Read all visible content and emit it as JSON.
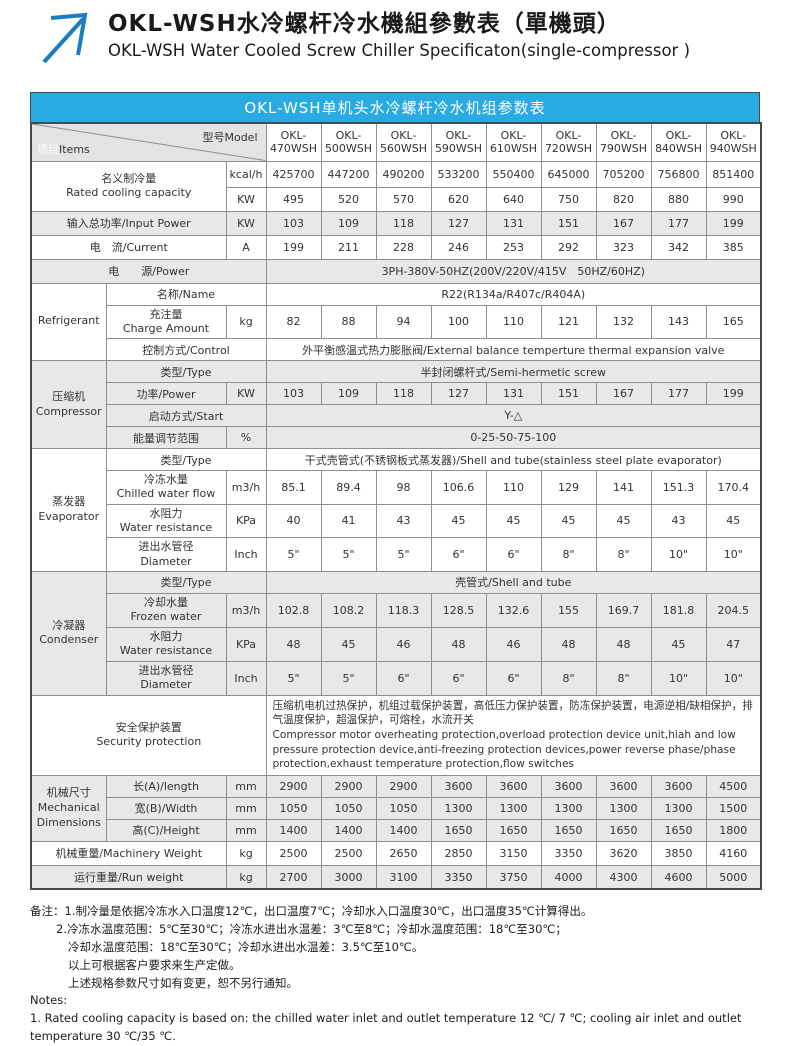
{
  "page_title": {
    "zh": "OKL-WSH水冷螺杆冷水機組參數表（單機頭）",
    "en": "OKL-WSH Water Cooled Screw Chiller Specificaton(single-compressor )"
  },
  "banner": {
    "text": "OKL-WSH单机头水冷螺杆冷水机组参数表"
  },
  "colors": {
    "banner_blue": "#29abe2",
    "arrow_blue": "#1a7dc2",
    "row_gray": "#e8e8e8",
    "border_gray": "#8f8f8f"
  },
  "header": {
    "items_zh": "项目",
    "items_en": "Items",
    "model_label": "型号Model",
    "models": [
      "OKL-470WSH",
      "OKL-500WSH",
      "OKL-560WSH",
      "OKL-590WSH",
      "OKL-610WSH",
      "OKL-720WSH",
      "OKL-790WSH",
      "OKL-840WSH",
      "OKL-940WSH"
    ]
  },
  "table": {
    "rated": {
      "label_zh": "名义制冷量",
      "label_en": "Rated cooling capacity",
      "kcal_unit": "kcal/h",
      "kcal_values": [
        425700,
        447200,
        490200,
        533200,
        550400,
        645000,
        705200,
        756800,
        851400
      ],
      "kw_unit": "KW",
      "kw_values": [
        495,
        520,
        570,
        620,
        640,
        750,
        820,
        880,
        990
      ]
    },
    "input_power": {
      "label": "输入总功率/Input Power",
      "unit": "KW",
      "values": [
        103,
        109,
        118,
        127,
        131,
        151,
        167,
        177,
        199
      ]
    },
    "current": {
      "label": "电　流/Current",
      "unit": "A",
      "values": [
        199,
        211,
        228,
        246,
        253,
        292,
        323,
        342,
        385
      ]
    },
    "power_supply": {
      "label": "电　　源/Power",
      "value": "3PH-380V-50HZ(200V/220V/415V　50HZ/60HZ)"
    },
    "refrigerant": {
      "group": "Refrigerant",
      "name_label": "名称/Name",
      "name_value": "R22(R134a/R407c/R404A)",
      "charge_label_zh": "充注量",
      "charge_label_en": "Charge Amount",
      "charge_unit": "kg",
      "charge_values": [
        82,
        88,
        94,
        100,
        110,
        121,
        132,
        143,
        165
      ],
      "control_label": "控制方式/Control",
      "control_value": "外平衡感温式热力膨胀阀/External balance temperture thermal expansion valve"
    },
    "compressor": {
      "group_zh": "压缩机",
      "group_en": "Compressor",
      "type_label": "类型/Type",
      "type_value": "半封闭螺杆式/Semi-hermetic screw",
      "power_label": "功率/Power",
      "power_unit": "KW",
      "power_values": [
        103,
        109,
        118,
        127,
        131,
        151,
        167,
        177,
        199
      ],
      "start_label": "启动方式/Start",
      "start_value": "Y-△",
      "capacity_label": "能量调节范围",
      "capacity_unit": "%",
      "capacity_value": "0-25-50-75-100"
    },
    "evaporator": {
      "group_zh": "蒸发器",
      "group_en": "Evaporator",
      "type_label": "类型/Type",
      "type_value": "干式壳管式(不锈钢板式蒸发器)/Shell and tube(stainless steel plate evaporator)",
      "flow_label_zh": "冷冻水量",
      "flow_label_en": "Chilled water flow",
      "flow_unit": "m3/h",
      "flow_values": [
        85.1,
        89.4,
        98,
        106.6,
        110,
        129,
        141,
        151.3,
        170.4
      ],
      "res_label_zh": "水阻力",
      "res_label_en": "Water resistance",
      "res_unit": "KPa",
      "res_values": [
        40,
        41,
        43,
        45,
        45,
        45,
        45,
        43,
        45
      ],
      "dia_label_zh": "进出水管径",
      "dia_label_en": "Diameter",
      "dia_unit": "Inch",
      "dia_values": [
        "5\"",
        "5\"",
        "5\"",
        "6\"",
        "6\"",
        "8\"",
        "8\"",
        "10\"",
        "10\""
      ]
    },
    "condenser": {
      "group_zh": "冷凝器",
      "group_en": "Condenser",
      "type_label": "类型/Type",
      "type_value": "壳管式/Shell and tube",
      "flow_label_zh": "冷却水量",
      "flow_label_en": "Frozen water",
      "flow_unit": "m3/h",
      "flow_values": [
        102.8,
        108.2,
        118.3,
        128.5,
        132.6,
        155,
        169.7,
        181.8,
        204.5
      ],
      "res_label_zh": "水阻力",
      "res_label_en": "Water resistance",
      "res_unit": "KPa",
      "res_values": [
        48,
        45,
        46,
        48,
        46,
        48,
        48,
        45,
        47
      ],
      "dia_label_zh": "进出水管径",
      "dia_label_en": "Diameter",
      "dia_unit": "Inch",
      "dia_values": [
        "5\"",
        "5\"",
        "6\"",
        "6\"",
        "6\"",
        "8\"",
        "8\"",
        "10\"",
        "10\""
      ]
    },
    "security": {
      "label_zh": "安全保护装置",
      "label_en": "Security protection",
      "text_zh": "压缩机电机过热保护，机组过载保护装置，高低压力保护装置，防冻保护装置，电源逆相/缺相保护，排气温度保护，超温保护，可熔栓，水流开关",
      "text_en": "Compressor motor overheating protection,overload protection device unit,hiah and low pressure protection device,anti-freezing protection devices,power reverse phase/phase protection,exhaust temperature protection,flow switches"
    },
    "dimensions": {
      "group_zh": "机械尺寸",
      "group_en_1": "Mechanical",
      "group_en_2": "Dimensions",
      "length_label": "长(A)/length",
      "length_unit": "mm",
      "length_values": [
        2900,
        2900,
        2900,
        3600,
        3600,
        3600,
        3600,
        3600,
        4500
      ],
      "width_label": "宽(B)/Width",
      "width_unit": "mm",
      "width_values": [
        1050,
        1050,
        1050,
        1300,
        1300,
        1300,
        1300,
        1300,
        1500
      ],
      "height_label": "高(C)/Height",
      "height_unit": "mm",
      "height_values": [
        1400,
        1400,
        1400,
        1650,
        1650,
        1650,
        1650,
        1650,
        1800
      ]
    },
    "machinery_weight": {
      "label": "机械重量/Machinery Weight",
      "unit": "kg",
      "values": [
        2500,
        2500,
        2650,
        2850,
        3150,
        3350,
        3620,
        3850,
        4160
      ]
    },
    "run_weight": {
      "label": "运行重量/Run weight",
      "unit": "kg",
      "values": [
        2700,
        3000,
        3100,
        3350,
        3750,
        4000,
        4300,
        4600,
        5000
      ]
    }
  },
  "notes": {
    "zh_1": "备注：1.制冷量是依据冷冻水入口温度12℃，出口温度7℃；冷却水入口温度30℃，出口温度35℃计算得出。",
    "zh_2": "2.冷冻水温度范围：5℃至30℃；冷冻水进出水温差：3℃至8℃；冷却水温度范围：18℃至30℃；",
    "zh_3": "冷却水温度范围：18℃至30℃；冷却水进出水温差：3.5℃至10℃。",
    "zh_4": "以上可根据客户要求来生产定做。",
    "zh_5": "上述规格参数尺寸如有变更，恕不另行通知。",
    "en_label": "Notes:",
    "en_1": "1. Rated cooling capacity is based on: the chilled water inlet and outlet temperature 12 ℃/ 7 ℃; cooling air inlet and outlet temperature 30 ℃/35 ℃."
  }
}
